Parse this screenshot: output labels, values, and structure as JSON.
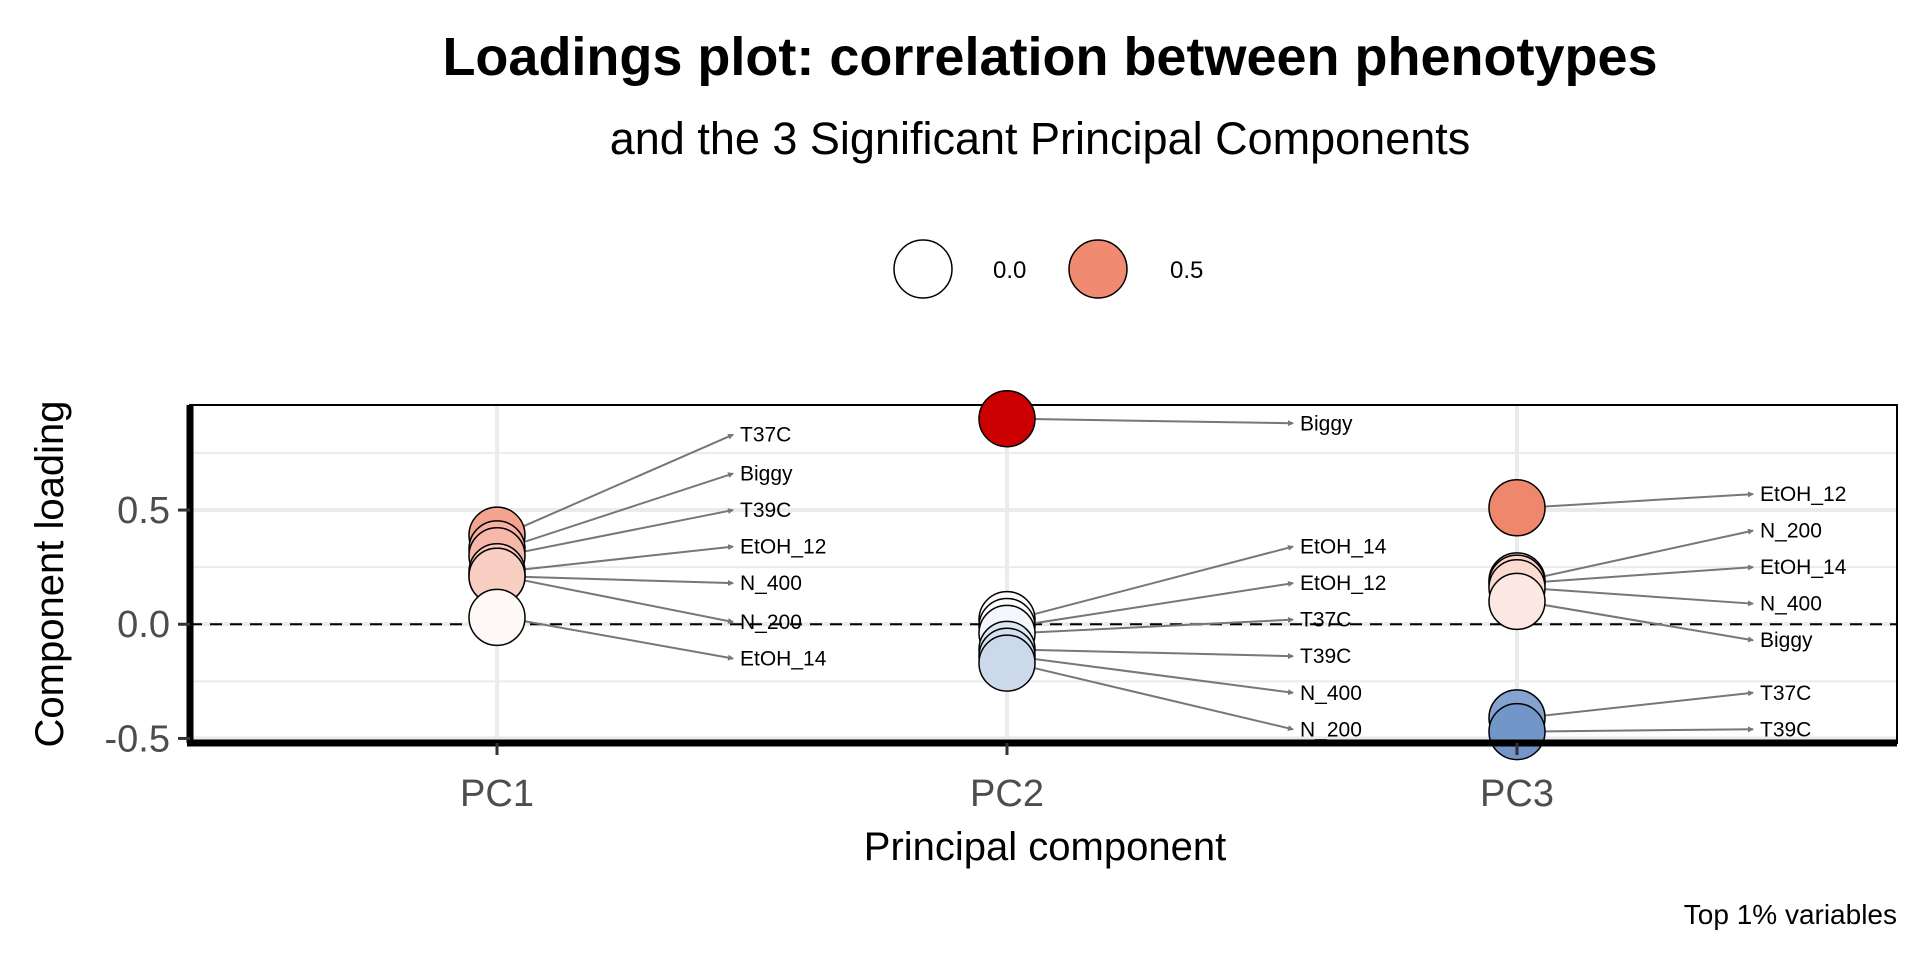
{
  "chart_data": {
    "type": "scatter",
    "title": "Loadings plot: correlation between phenotypes",
    "subtitle": "and the 3 Significant Principal Components",
    "xlabel": "Principal component",
    "ylabel": "Component loading",
    "caption": "Top 1% variables",
    "categories": [
      "PC1",
      "PC2",
      "PC3"
    ],
    "ylim": [
      -0.52,
      0.96
    ],
    "yticks": [
      -0.5,
      0.0,
      0.5
    ],
    "ytick_labels": [
      "-0.5",
      "0.0",
      "0.5"
    ],
    "reference_line": {
      "y": 0,
      "style": "dashed"
    },
    "grid": true,
    "legend": {
      "position": "top",
      "entries": [
        {
          "label": "0.0",
          "value": 0.0,
          "color": "#ffffff"
        },
        {
          "label": "0.5",
          "value": 0.5,
          "color": "#f08a70"
        }
      ]
    },
    "colors": {
      "positive_max": "#cc0000",
      "negative": "#6a8fc4",
      "neutral": "#ffffff"
    },
    "points": [
      {
        "component": "PC1",
        "variable": "T37C",
        "loading": 0.39,
        "label_y": 0.83
      },
      {
        "component": "PC1",
        "variable": "Biggy",
        "loading": 0.33,
        "label_y": 0.66
      },
      {
        "component": "PC1",
        "variable": "T39C",
        "loading": 0.3,
        "label_y": 0.5
      },
      {
        "component": "PC1",
        "variable": "EtOH_12",
        "loading": 0.23,
        "label_y": 0.34
      },
      {
        "component": "PC1",
        "variable": "N_400",
        "loading": 0.21,
        "label_y": 0.18
      },
      {
        "component": "PC1",
        "variable": "N_200",
        "loading": 0.21,
        "label_y": 0.01
      },
      {
        "component": "PC1",
        "variable": "EtOH_14",
        "loading": 0.03,
        "label_y": -0.15
      },
      {
        "component": "PC2",
        "variable": "Biggy",
        "loading": 0.9,
        "label_y": 0.88
      },
      {
        "component": "PC2",
        "variable": "EtOH_14",
        "loading": 0.02,
        "label_y": 0.34
      },
      {
        "component": "PC2",
        "variable": "EtOH_12",
        "loading": -0.01,
        "label_y": 0.18
      },
      {
        "component": "PC2",
        "variable": "T37C",
        "loading": -0.04,
        "label_y": 0.02
      },
      {
        "component": "PC2",
        "variable": "T39C",
        "loading": -0.11,
        "label_y": -0.14
      },
      {
        "component": "PC2",
        "variable": "N_400",
        "loading": -0.14,
        "label_y": -0.3
      },
      {
        "component": "PC2",
        "variable": "N_200",
        "loading": -0.17,
        "label_y": -0.46
      },
      {
        "component": "PC3",
        "variable": "EtOH_12",
        "loading": 0.51,
        "label_y": 0.57
      },
      {
        "component": "PC3",
        "variable": "N_200",
        "loading": 0.19,
        "label_y": 0.41
      },
      {
        "component": "PC3",
        "variable": "EtOH_14",
        "loading": 0.18,
        "label_y": 0.25
      },
      {
        "component": "PC3",
        "variable": "N_400",
        "loading": 0.16,
        "label_y": 0.09
      },
      {
        "component": "PC3",
        "variable": "Biggy",
        "loading": 0.1,
        "label_y": -0.07
      },
      {
        "component": "PC3",
        "variable": "T37C",
        "loading": -0.41,
        "label_y": -0.3
      },
      {
        "component": "PC3",
        "variable": "T39C",
        "loading": -0.47,
        "label_y": -0.46
      }
    ]
  }
}
